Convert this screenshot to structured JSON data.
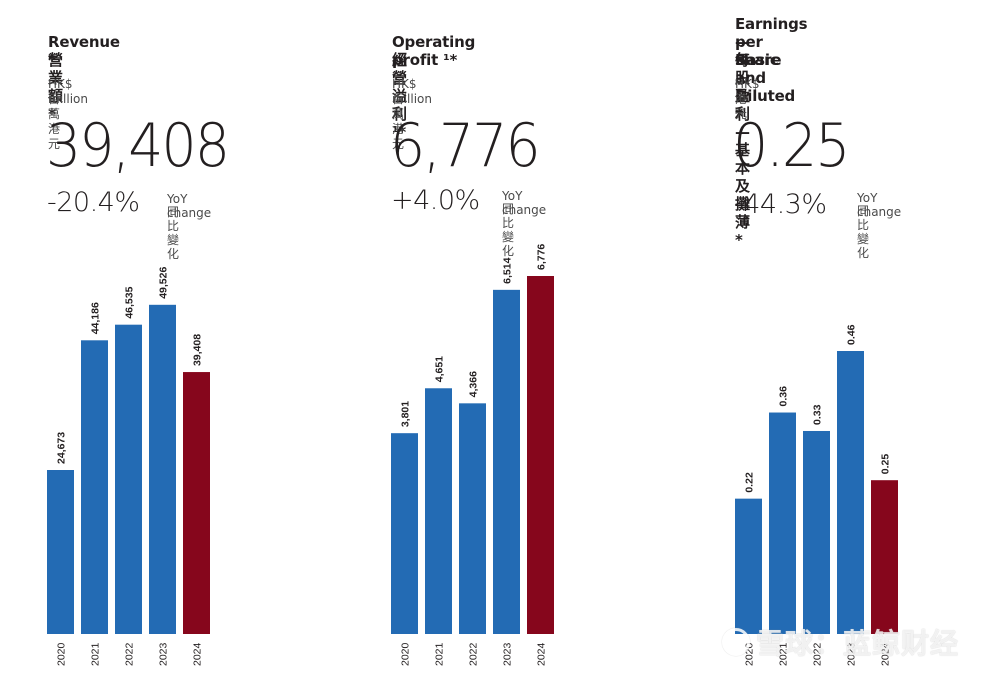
{
  "colors": {
    "bar": "#236bb4",
    "highlight": "#86061c",
    "label": "#231f20"
  },
  "panels": [
    {
      "title_en": "Revenue *",
      "title_zh": "營業額 *",
      "unit_en": "HK$ million",
      "unit_zh": "百萬港元",
      "value": "39,408",
      "change": "-20.4%",
      "yoy_en": "YoY change",
      "yoy_zh": "同比變化"
    },
    {
      "title_en": "Operating profit ¹*",
      "title_zh": "經營溢利 ¹*",
      "unit_en": "HK$ million",
      "unit_zh": "百萬港元",
      "value": "6,776",
      "change": "+4.0%",
      "yoy_en": "YoY change",
      "yoy_zh": "同比變化"
    },
    {
      "title_en": "Earnings per share",
      "title_en2": "— Basic and Diluted *",
      "title_zh": "每股盈利 — 基本及攤薄 *",
      "unit_en": "HK$",
      "unit_zh": "港元",
      "value": "0.25",
      "change": "-44.3%",
      "yoy_en": "YoY change",
      "yoy_zh": "同比變化"
    }
  ],
  "watermark": "雪球：蓝鲸财经",
  "chart_data": [
    {
      "type": "bar",
      "title": "Revenue * 營業額 *",
      "ylabel": "HK$ million 百萬港元",
      "categories": [
        "2020",
        "2021",
        "2022",
        "2023",
        "2024"
      ],
      "values": [
        24673,
        44186,
        46535,
        49526,
        39408
      ],
      "labels": [
        "24,673",
        "44,186",
        "46,535",
        "49,526",
        "39,408"
      ],
      "highlight_index": 4,
      "ylim": [
        0,
        60000
      ],
      "grid": false
    },
    {
      "type": "bar",
      "title": "Operating profit ¹* 經營溢利 ¹*",
      "ylabel": "HK$ million 百萬港元",
      "categories": [
        "2020",
        "2021",
        "2022",
        "2023",
        "2024"
      ],
      "values": [
        3801,
        4651,
        4366,
        6514,
        6776
      ],
      "labels": [
        "3,801",
        "4,651",
        "4,366",
        "6,514",
        "6,776"
      ],
      "highlight_index": 4,
      "ylim": [
        0,
        7300
      ],
      "grid": false
    },
    {
      "type": "bar",
      "title": "Earnings per share — Basic and Diluted * 每股盈利 — 基本及攤薄 *",
      "ylabel": "HK$ 港元",
      "categories": [
        "2020",
        "2021",
        "2022",
        "2023",
        "2024"
      ],
      "values": [
        0.22,
        0.36,
        0.33,
        0.46,
        0.25
      ],
      "labels": [
        "0.22",
        "0.36",
        "0.33",
        "0.46",
        "0.25"
      ],
      "highlight_index": 4,
      "ylim": [
        0,
        0.7
      ],
      "grid": false
    }
  ]
}
